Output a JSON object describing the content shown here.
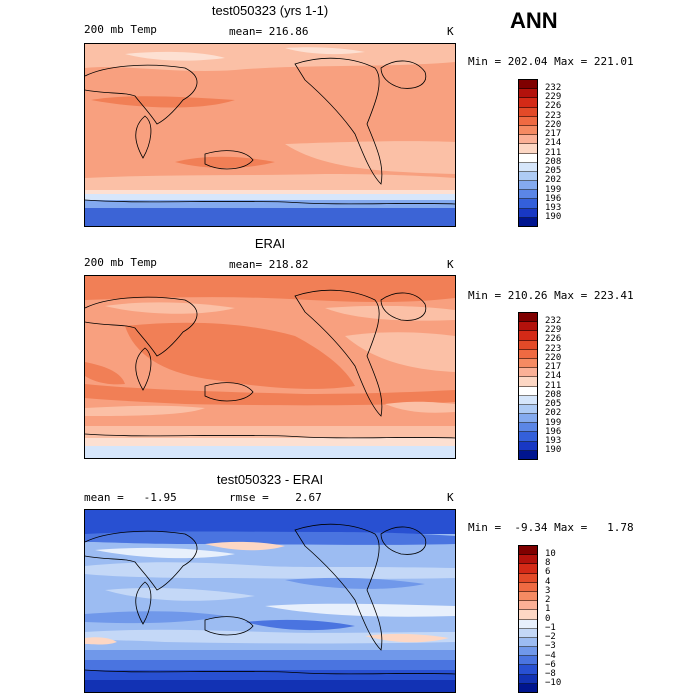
{
  "header": {
    "season": "ANN"
  },
  "panels": [
    {
      "id": "model",
      "title": "test050323 (yrs 1-1)",
      "field": "200 mb Temp",
      "stat": "mean= 216.86",
      "unit": "K",
      "minmax": "Min = 202.04 Max = 221.01",
      "colorbar": {
        "labels": [
          "232",
          "229",
          "226",
          "223",
          "220",
          "217",
          "214",
          "211",
          "208",
          "205",
          "202",
          "199",
          "196",
          "193",
          "190"
        ],
        "colors": [
          "#7f0000",
          "#b3120c",
          "#d42a17",
          "#e34a28",
          "#ef6a42",
          "#f58a62",
          "#fbb096",
          "#fdd7c4",
          "#ffffff",
          "#d6e6fb",
          "#aecbf5",
          "#84aaef",
          "#5b86e6",
          "#3460da",
          "#1838c4",
          "#00158f"
        ]
      }
    },
    {
      "id": "obs",
      "title": "ERAI",
      "field": "200 mb Temp",
      "stat": "mean= 218.82",
      "unit": "K",
      "minmax": "Min = 210.26 Max = 223.41",
      "colorbar": {
        "labels": [
          "232",
          "229",
          "226",
          "223",
          "220",
          "217",
          "214",
          "211",
          "208",
          "205",
          "202",
          "199",
          "196",
          "193",
          "190"
        ],
        "colors": [
          "#7f0000",
          "#b3120c",
          "#d42a17",
          "#e34a28",
          "#ef6a42",
          "#f58a62",
          "#fbb096",
          "#fdd7c4",
          "#ffffff",
          "#d6e6fb",
          "#aecbf5",
          "#84aaef",
          "#5b86e6",
          "#3460da",
          "#1838c4",
          "#00158f"
        ]
      }
    },
    {
      "id": "diff",
      "title": "test050323 - ERAI",
      "field": "mean =   -1.95",
      "stat": "rmse =    2.67",
      "unit": "K",
      "minmax": "Min =  -9.34 Max =   1.78",
      "colorbar": {
        "labels": [
          "10",
          "8",
          "6",
          "4",
          "3",
          "2",
          "1",
          "0",
          "−1",
          "−2",
          "−3",
          "−4",
          "−6",
          "−8",
          "−10"
        ],
        "colors": [
          "#7f0000",
          "#b3120c",
          "#d42a17",
          "#e34a28",
          "#ef6a42",
          "#f58a62",
          "#fbb096",
          "#fdd7c4",
          "#e8f0fc",
          "#c4d8f7",
          "#9cbcf2",
          "#7098ea",
          "#4a74e0",
          "#2850d2",
          "#1232b4",
          "#00158f"
        ]
      }
    }
  ]
}
